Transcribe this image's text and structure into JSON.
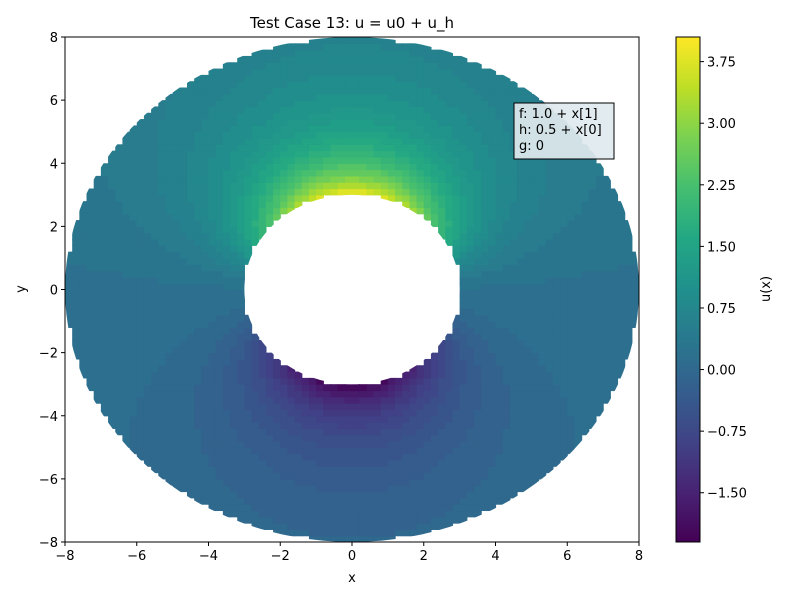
{
  "chart_data": {
    "type": "heatmap",
    "title": "Test Case 13: u = u0 + u_h",
    "xlabel": "x",
    "ylabel": "y",
    "xlim": [
      -8,
      8
    ],
    "ylim": [
      -8,
      8
    ],
    "xticks": [
      "−8",
      "−6",
      "−4",
      "−2",
      "0",
      "2",
      "4",
      "6",
      "8"
    ],
    "yticks": [
      "−8",
      "−6",
      "−4",
      "−2",
      "0",
      "2",
      "4",
      "6",
      "8"
    ],
    "domain": {
      "shape": "annulus",
      "inner_radius": 3,
      "outer_radius": 8
    },
    "field": {
      "description": "u(x) contour fill on annulus",
      "max_value": 4.05,
      "min_value": -2.1,
      "background_value": 0.2
    },
    "colorbar": {
      "label": "u(x)",
      "colormap": "viridis",
      "range": [
        -2.1,
        4.05
      ],
      "ticks": [
        {
          "value": -1.5,
          "label": "−1.50"
        },
        {
          "value": -0.75,
          "label": "−0.75"
        },
        {
          "value": 0.0,
          "label": "0.00"
        },
        {
          "value": 0.75,
          "label": "0.75"
        },
        {
          "value": 1.5,
          "label": "1.50"
        },
        {
          "value": 2.25,
          "label": "2.25"
        },
        {
          "value": 3.0,
          "label": "3.00"
        },
        {
          "value": 3.75,
          "label": "3.75"
        }
      ]
    },
    "annotation": {
      "lines": [
        "f: 1.0 + x[1]",
        "h: 0.5 + x[0]",
        "g: 0"
      ]
    }
  }
}
